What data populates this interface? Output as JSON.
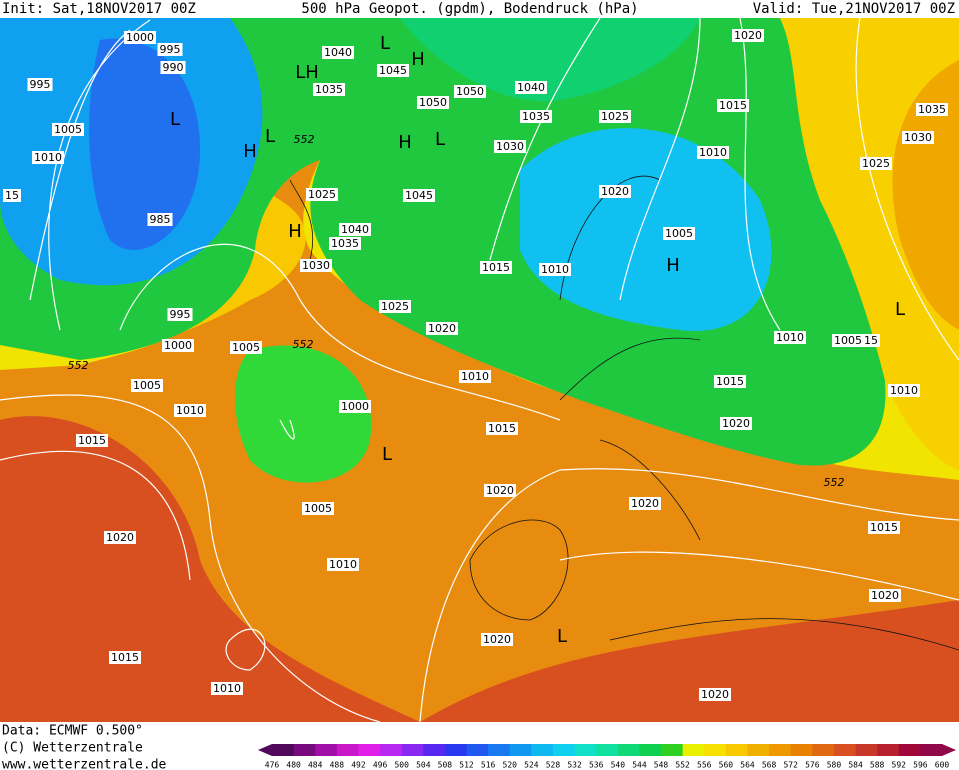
{
  "header": {
    "init": "Init: Sat,18NOV2017 00Z",
    "title": "500 hPa Geopot. (gpdm), Bodendruck (hPa)",
    "valid": "Valid: Tue,21NOV2017 00Z"
  },
  "pressure_labels": [
    "1000",
    "995",
    "990",
    "995",
    "1005",
    "1010",
    "15",
    "985",
    "995",
    "1000",
    "552",
    "1005",
    "1010",
    "1015",
    "1020",
    "1015",
    "1010",
    "1005",
    "552",
    "1000",
    "1005",
    "1010",
    "1020",
    "1020",
    "1015",
    "1010",
    "1020",
    "1025",
    "1030",
    "1035",
    "1040",
    "1025",
    "552",
    "1035",
    "1040",
    "1045",
    "1050",
    "1050",
    "1040",
    "1035",
    "1030",
    "1045",
    "1015",
    "1010",
    "1025",
    "1020",
    "1005",
    "1020",
    "1015",
    "1010",
    "1010",
    "1005",
    "15",
    "1015",
    "1020",
    "552",
    "1020",
    "1015",
    "1020",
    "1020",
    "1035",
    "1030",
    "1025",
    "1010"
  ],
  "centers": [
    "L",
    "H",
    "L",
    "LH",
    "H",
    "H",
    "L",
    "L",
    "H",
    "H",
    "L",
    "L",
    "L"
  ],
  "footer": {
    "data": "Data: ECMWF  0.500°",
    "copyright": "(C) Wetterzentrale",
    "url": "www.wetterzentrale.de"
  },
  "colorbar": {
    "ticks": [
      476,
      480,
      484,
      488,
      492,
      496,
      500,
      504,
      508,
      512,
      516,
      520,
      524,
      528,
      532,
      536,
      540,
      544,
      548,
      552,
      556,
      560,
      564,
      568,
      572,
      576,
      580,
      584,
      588,
      592,
      596,
      600
    ],
    "colors": [
      "#50085a",
      "#780a80",
      "#a010a8",
      "#c818c8",
      "#e020e8",
      "#b828f0",
      "#8828f0",
      "#5828f0",
      "#2838f0",
      "#2058f0",
      "#1878f0",
      "#1098f0",
      "#10b8f0",
      "#10d0f0",
      "#10e0c8",
      "#10e0a0",
      "#10d878",
      "#10d050",
      "#30d020",
      "#e8f000",
      "#f8e000",
      "#f8c800",
      "#f0b000",
      "#f09800",
      "#e88000",
      "#e06810",
      "#d85020",
      "#c83828",
      "#b82030",
      "#a00838",
      "#900848"
    ]
  }
}
